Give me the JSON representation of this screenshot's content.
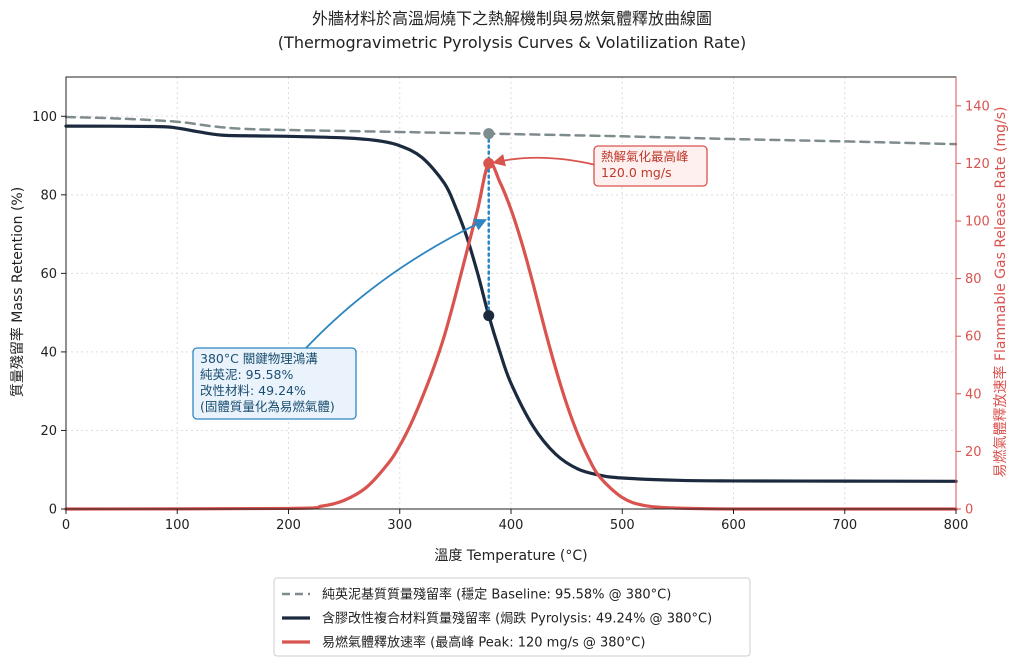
{
  "chart_data": {
    "type": "line",
    "title": "外牆材料於高溫焗燒下之熱解機制與易燃氣體釋放曲線圖",
    "subtitle": "(Thermogravimetric Pyrolysis Curves & Volatilization Rate)",
    "xlabel": "溫度 Temperature (°C)",
    "ylabel_left": "質量殘留率 Mass Retention (%)",
    "ylabel_right": "易燃氣體釋放速率 Flammable Gas Release Rate (mg/s)",
    "xlim": [
      0,
      800
    ],
    "ylim_left": [
      0,
      110
    ],
    "ylim_right": [
      0,
      150
    ],
    "x_ticks": [
      0,
      100,
      200,
      300,
      400,
      500,
      600,
      700,
      800
    ],
    "y_ticks_left": [
      0,
      20,
      40,
      60,
      80,
      100
    ],
    "y_ticks_right": [
      0,
      20,
      40,
      60,
      80,
      100,
      120,
      140
    ],
    "grid": true,
    "legend_position": "bottom",
    "colors": {
      "baseline": "#7f8c8d",
      "pyrolysis": "#1b2a3e",
      "gas": "#d9534f",
      "marker": "#2e86c1",
      "annot_blue": "#2e86c1",
      "annot_red": "#d9534f"
    },
    "series": [
      {
        "name": "純英泥基質質量殘留率 (穩定 Baseline: 95.58% @ 380°C)",
        "axis": "left",
        "style": "dashed",
        "x": [
          0,
          50,
          100,
          130,
          160,
          200,
          300,
          380,
          500,
          600,
          700,
          800
        ],
        "y": [
          99.8,
          99.4,
          98.6,
          97.5,
          96.8,
          96.5,
          96.0,
          95.58,
          94.9,
          94.2,
          93.6,
          92.9
        ]
      },
      {
        "name": "含膠改性複合材料質量殘留率 (焗跌 Pyrolysis: 49.24% @ 380°C)",
        "axis": "left",
        "style": "solid",
        "x": [
          0,
          80,
          100,
          120,
          140,
          170,
          200,
          250,
          280,
          300,
          320,
          340,
          350,
          360,
          370,
          380,
          390,
          400,
          420,
          440,
          460,
          480,
          500,
          550,
          600,
          700,
          800
        ],
        "y": [
          97.5,
          97.4,
          97.0,
          96.0,
          95.2,
          95.0,
          94.9,
          94.5,
          93.8,
          92.5,
          89.5,
          83.0,
          77.0,
          69.5,
          60.0,
          49.24,
          40.0,
          32.0,
          21.0,
          14.0,
          10.2,
          8.6,
          7.9,
          7.3,
          7.15,
          7.1,
          7.05
        ]
      },
      {
        "name": "易燃氣體釋放速率 (最高峰 Peak: 120 mg/s @ 380°C)",
        "axis": "right",
        "style": "solid",
        "x": [
          0,
          200,
          230,
          250,
          270,
          290,
          300,
          310,
          320,
          330,
          340,
          350,
          360,
          370,
          380,
          390,
          400,
          410,
          420,
          430,
          440,
          450,
          460,
          470,
          480,
          500,
          520,
          550,
          600,
          700,
          800
        ],
        "y": [
          0,
          0.2,
          1.0,
          3.0,
          7.5,
          16.0,
          22.0,
          29.5,
          38.5,
          48.5,
          60.0,
          74.0,
          89.0,
          104.0,
          120.0,
          113.5,
          104.0,
          92.0,
          78.0,
          63.0,
          49.0,
          36.5,
          26.0,
          17.5,
          11.0,
          4.0,
          1.2,
          0.3,
          0,
          0,
          0
        ]
      }
    ],
    "markers": [
      {
        "x": 380,
        "y": 95.58,
        "axis": "left",
        "color": "#7f8c8d"
      },
      {
        "x": 380,
        "y": 49.24,
        "axis": "left",
        "color": "#1b2a3e"
      },
      {
        "x": 380,
        "y": 120,
        "axis": "right",
        "color": "#d9534f"
      }
    ],
    "annotations": {
      "gas_peak": [
        "熱解氣化最高峰",
        "120.0 mg/s"
      ],
      "gap": [
        "380°C 關鍵物理鴻溝",
        "純英泥: 95.58%",
        "改性材料: 49.24%",
        "(固體質量化為易燃氣體)"
      ]
    }
  }
}
